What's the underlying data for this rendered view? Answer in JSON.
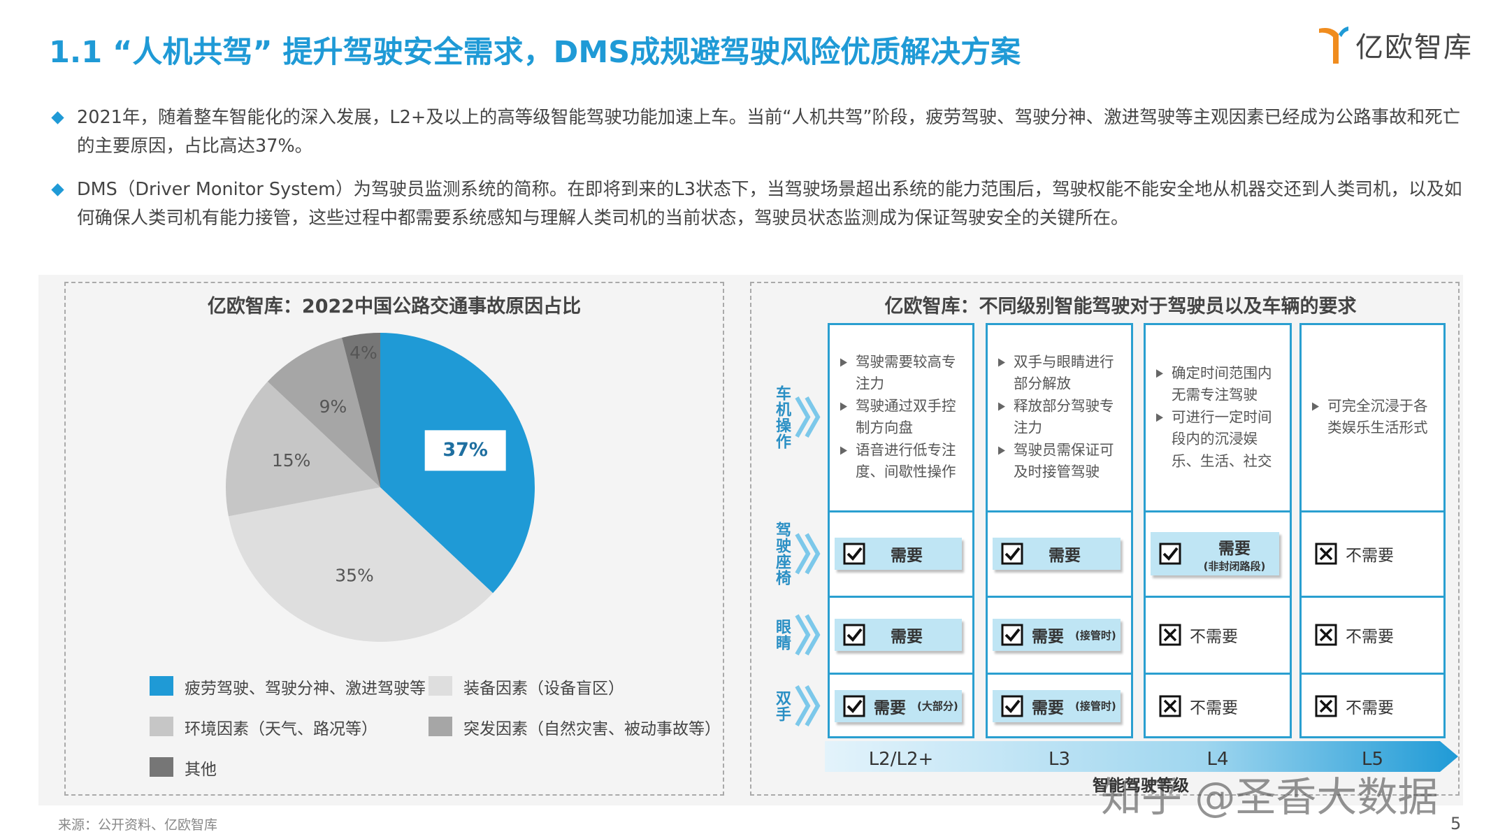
{
  "header": {
    "title": "1.1 “人机共驾” 提升驾驶安全需求，DMS成规避驾驶风险优质解决方案",
    "logo": "亿欧智库"
  },
  "bullets": [
    "2021年，随着整车智能化的深入发展，L2+及以上的高等级智能驾驶功能加速上车。当前“人机共驾”阶段，疲劳驾驶、驾驶分神、激进驾驶等主观因素已经成为公路事故和死亡的主要原因，占比高达37%。",
    "DMS（Driver Monitor System）为驾驶员监测系统的简称。在即将到来的L3状态下，当驾驶场景超出系统的能力范围后，驾驶权能不能安全地从机器交还到人类司机，以及如何确保人类司机有能力接管，这些过程中都需要系统感知与理解人类司机的当前状态，驾驶员状态监测成为保证驾驶安全的关键所在。"
  ],
  "chart_data": {
    "type": "pie",
    "title": "亿欧智库：2022中国公路交通事故原因占比",
    "categories": [
      "疲劳驾驶、驾驶分神、激进驾驶等",
      "装备因素（设备盲区）",
      "环境因素（天气、路况等）",
      "突发因素（自然灾害、被动事故等）",
      "其他"
    ],
    "values": [
      37,
      35,
      15,
      9,
      4
    ],
    "value_labels": [
      "37%",
      "35%",
      "15%",
      "9%",
      "4%"
    ],
    "colors": [
      "#1f9ad6",
      "#dedede",
      "#c6c6c6",
      "#a6a6a6",
      "#767676"
    ]
  },
  "diagram": {
    "title": "亿欧智库：不同级别智能驾驶对于驾驶员以及车辆的要求",
    "levels": [
      "L2/L2+",
      "L3",
      "L4",
      "L5"
    ],
    "level_axis_label": "智能驾驶等级",
    "operation": {
      "label": "车机操作",
      "cells": [
        [
          "驾驶需要较高专注力",
          "驾驶通过双手控制方向盘",
          "语音进行低专注度、间歇性操作"
        ],
        [
          "双手与眼睛进行部分解放",
          "释放部分驾驶专注力",
          "驾驶员需保证可及时接管驾驶"
        ],
        [
          "确定时间范围内无需专注驾驶",
          "可进行一定时间段内的沉浸娱乐、生活、社交"
        ],
        [
          "可完全沉浸于各类娱乐生活形式"
        ]
      ]
    },
    "requirements": [
      {
        "label": "驾驶座椅",
        "cells": [
          {
            "checked": true,
            "text": "需要"
          },
          {
            "checked": true,
            "text": "需要"
          },
          {
            "checked": true,
            "text": "需要",
            "note": "(非封闭路段)"
          },
          {
            "checked": false,
            "text": "不需要"
          }
        ]
      },
      {
        "label": "眼睛",
        "cells": [
          {
            "checked": true,
            "text": "需要"
          },
          {
            "checked": true,
            "text": "需要",
            "note": "(接管时)"
          },
          {
            "checked": false,
            "text": "不需要"
          },
          {
            "checked": false,
            "text": "不需要"
          }
        ]
      },
      {
        "label": "双手",
        "cells": [
          {
            "checked": true,
            "text": "需要",
            "note": "(大部分)"
          },
          {
            "checked": true,
            "text": "需要",
            "note": "(接管时)"
          },
          {
            "checked": false,
            "text": "不需要"
          },
          {
            "checked": false,
            "text": "不需要"
          }
        ]
      }
    ]
  },
  "source": "来源：公开资料、亿欧智库",
  "page_number": "5",
  "watermark": "知乎 @圣香大数据"
}
